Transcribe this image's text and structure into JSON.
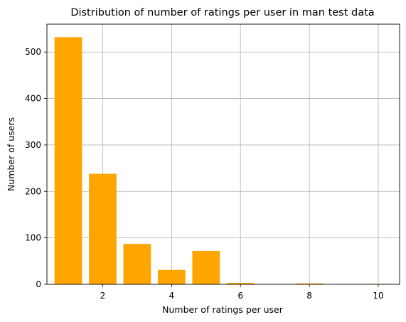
{
  "chart_data": {
    "type": "bar",
    "title": "Distribution of number of ratings per user in man test data",
    "xlabel": "Number of ratings per user",
    "ylabel": "Number of users",
    "x": [
      1,
      2,
      3,
      4,
      5,
      6,
      8,
      10
    ],
    "values": [
      532,
      238,
      87,
      31,
      72,
      3,
      2,
      1
    ],
    "xlim": [
      0.38,
      10.62
    ],
    "ylim": [
      0,
      560
    ],
    "xticks": [
      2,
      4,
      6,
      8,
      10
    ],
    "yticks": [
      0,
      100,
      200,
      300,
      400,
      500
    ],
    "grid": true,
    "bar_color": "#ffa500",
    "grid_color": "#b0b0b0"
  }
}
